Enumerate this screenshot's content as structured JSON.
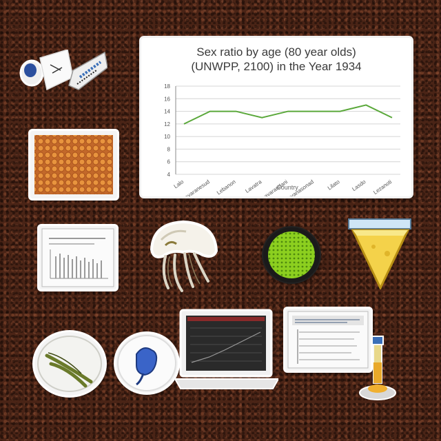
{
  "chart_data": {
    "type": "line",
    "title": "Sex ratio by age (80 year olds)",
    "subtitle": "(UNWPP, 2100) in the Year 1934",
    "xlabel": "Country",
    "ylabel": "",
    "x": [
      "Lalo",
      "Lavaranesud",
      "Lebanon",
      "Lavatra",
      "Lavarandani",
      "Lavanasonad",
      "Lilato",
      "Lasdo",
      "Lezanoti"
    ],
    "series": [
      {
        "values": [
          12,
          14,
          14,
          13,
          14,
          14,
          14,
          15,
          13
        ]
      }
    ],
    "yticks": [
      "18",
      "16",
      "14",
      "12",
      "10",
      "8",
      "6",
      "4"
    ],
    "ylim": [
      4,
      18
    ],
    "line_color": "#5aa83a",
    "grid": true,
    "legend": "none"
  },
  "stickers": [
    {
      "name": "keycard-bracelet-icon"
    },
    {
      "name": "chickpeas-tray-icon"
    },
    {
      "name": "bar-chart-paper-icon"
    },
    {
      "name": "jellyfish-icon"
    },
    {
      "name": "green-virus-icon"
    },
    {
      "name": "cheese-wedge-icon"
    },
    {
      "name": "green-beans-icon"
    },
    {
      "name": "blue-flower-icon"
    },
    {
      "name": "laptop-icon"
    },
    {
      "name": "document-chart-icon"
    },
    {
      "name": "beaker-stand-icon"
    }
  ]
}
